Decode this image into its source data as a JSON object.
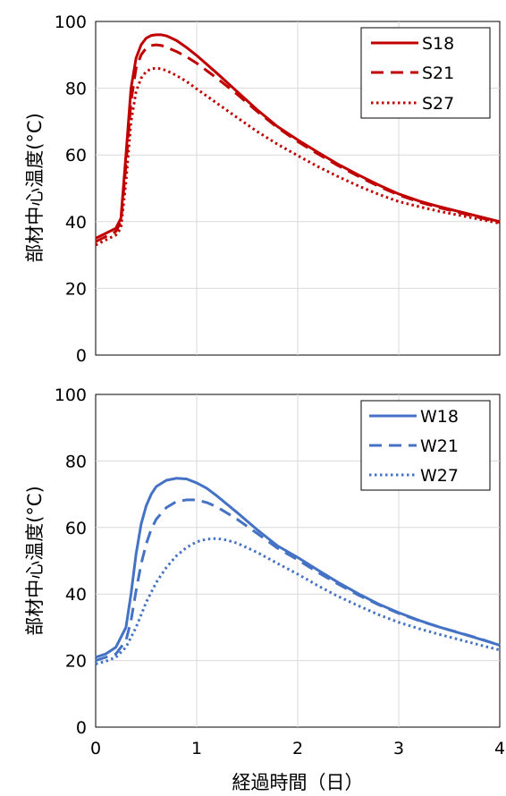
{
  "chart_data": [
    {
      "type": "line",
      "ylabel": "部材中心温度(°C)",
      "xlim": [
        0,
        4
      ],
      "ylim": [
        0,
        100
      ],
      "x_ticks": [
        "0",
        "1",
        "2",
        "3",
        "4"
      ],
      "y_ticks": [
        "0",
        "20",
        "40",
        "60",
        "80",
        "100"
      ],
      "grid": true,
      "legend_position": "top-right",
      "color": "#C00000",
      "series": [
        {
          "name": "S18",
          "dash": "solid",
          "x": [
            0,
            0.1,
            0.2,
            0.25,
            0.3,
            0.35,
            0.4,
            0.45,
            0.5,
            0.55,
            0.6,
            0.65,
            0.7,
            0.8,
            0.9,
            1.0,
            1.2,
            1.4,
            1.6,
            1.8,
            2.0,
            2.2,
            2.4,
            2.6,
            2.8,
            3.0,
            3.2,
            3.4,
            3.6,
            3.8,
            4.0
          ],
          "y": [
            35,
            36.5,
            38,
            41,
            60,
            80,
            89,
            93,
            95,
            95.8,
            96,
            96,
            95.7,
            94.3,
            92.2,
            89.8,
            84.5,
            79,
            73.5,
            68.5,
            64.5,
            60.8,
            57.2,
            54,
            51,
            48.3,
            46.2,
            44.5,
            43,
            41.5,
            40
          ]
        },
        {
          "name": "S21",
          "dash": "dash",
          "x": [
            0,
            0.1,
            0.2,
            0.25,
            0.3,
            0.35,
            0.4,
            0.45,
            0.5,
            0.55,
            0.6,
            0.65,
            0.7,
            0.8,
            0.9,
            1.0,
            1.2,
            1.4,
            1.6,
            1.8,
            2.0,
            2.2,
            2.4,
            2.6,
            2.8,
            3.0,
            3.2,
            3.4,
            3.6,
            3.8,
            4.0
          ],
          "y": [
            34,
            35.5,
            37,
            40,
            57,
            76,
            86,
            90,
            92,
            92.8,
            93,
            92.8,
            92.3,
            91,
            89.4,
            87.5,
            83,
            78.2,
            73,
            68.2,
            64,
            60.3,
            56.8,
            53.6,
            50.6,
            48,
            45.9,
            44.2,
            42.7,
            41.2,
            39.8
          ]
        },
        {
          "name": "S27",
          "dash": "dot",
          "x": [
            0,
            0.1,
            0.2,
            0.25,
            0.3,
            0.35,
            0.4,
            0.45,
            0.5,
            0.55,
            0.6,
            0.65,
            0.7,
            0.8,
            0.9,
            1.0,
            1.2,
            1.4,
            1.6,
            1.8,
            2.0,
            2.2,
            2.4,
            2.6,
            2.8,
            3.0,
            3.2,
            3.4,
            3.6,
            3.8,
            4.0
          ],
          "y": [
            33,
            34.5,
            36,
            38,
            52,
            70,
            79,
            83,
            85,
            85.8,
            86,
            85.8,
            85.3,
            83.8,
            82,
            79.8,
            75.5,
            71.2,
            67,
            63.2,
            59.8,
            56.5,
            53.5,
            50.7,
            48.2,
            46,
            44.5,
            43.1,
            41.9,
            40.7,
            39.5
          ]
        }
      ]
    },
    {
      "type": "line",
      "xlabel": "経過時間（日）",
      "ylabel": "部材中心温度(°C)",
      "xlim": [
        0,
        4
      ],
      "ylim": [
        0,
        100
      ],
      "x_ticks": [
        "0",
        "1",
        "2",
        "3",
        "4"
      ],
      "y_ticks": [
        "0",
        "20",
        "40",
        "60",
        "80",
        "100"
      ],
      "grid": true,
      "legend_position": "top-right",
      "color": "#4472C4",
      "series": [
        {
          "name": "W18",
          "dash": "solid",
          "x": [
            0,
            0.1,
            0.2,
            0.3,
            0.35,
            0.4,
            0.45,
            0.5,
            0.55,
            0.6,
            0.7,
            0.8,
            0.9,
            1.0,
            1.1,
            1.2,
            1.4,
            1.6,
            1.8,
            2.0,
            2.2,
            2.4,
            2.6,
            2.8,
            3.0,
            3.2,
            3.4,
            3.6,
            3.8,
            4.0
          ],
          "y": [
            21,
            22,
            24,
            30,
            40,
            52,
            61,
            66.5,
            70,
            72.3,
            74.2,
            74.8,
            74.6,
            73.4,
            71.8,
            69.5,
            64.5,
            59.3,
            54.5,
            51,
            47.2,
            43.5,
            40.1,
            37,
            34.4,
            32.1,
            30.1,
            28.3,
            26.5,
            24.6
          ]
        },
        {
          "name": "W21",
          "dash": "dash",
          "x": [
            0,
            0.1,
            0.2,
            0.3,
            0.35,
            0.4,
            0.45,
            0.5,
            0.55,
            0.6,
            0.7,
            0.8,
            0.9,
            1.0,
            1.1,
            1.2,
            1.4,
            1.6,
            1.8,
            2.0,
            2.2,
            2.4,
            2.6,
            2.8,
            3.0,
            3.2,
            3.4,
            3.6,
            3.8,
            4.0
          ],
          "y": [
            20,
            21,
            22,
            26,
            32,
            41,
            49,
            55,
            59.5,
            62.5,
            66,
            67.8,
            68.3,
            68.3,
            67.5,
            66.2,
            62.5,
            58.2,
            53.8,
            50.3,
            46.5,
            43,
            39.7,
            36.8,
            34.2,
            32,
            30.1,
            28.4,
            26.6,
            24.6
          ]
        },
        {
          "name": "W27",
          "dash": "dot",
          "x": [
            0,
            0.1,
            0.2,
            0.3,
            0.4,
            0.5,
            0.6,
            0.7,
            0.8,
            0.9,
            1.0,
            1.1,
            1.2,
            1.3,
            1.4,
            1.6,
            1.8,
            2.0,
            2.2,
            2.4,
            2.6,
            2.8,
            3.0,
            3.2,
            3.4,
            3.6,
            3.8,
            4.0
          ],
          "y": [
            19,
            19.8,
            21,
            24,
            30,
            37.5,
            43.5,
            48,
            51.5,
            54,
            55.7,
            56.5,
            56.7,
            56.2,
            55.3,
            52.5,
            49.2,
            46,
            42.5,
            39.3,
            36.5,
            33.8,
            31.5,
            29.6,
            27.9,
            26.3,
            24.7,
            23.2
          ]
        }
      ]
    }
  ]
}
